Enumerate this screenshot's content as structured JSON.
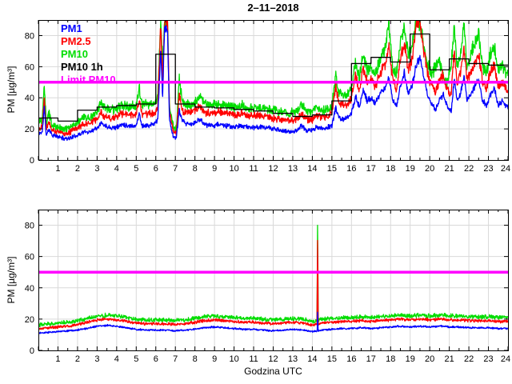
{
  "title": "2–11–2018",
  "xlabel": "Godzina UTC",
  "ylabel": "PM [µg/m³]",
  "legend": [
    {
      "label": "PM1",
      "color": "#0000ff"
    },
    {
      "label": "PM2.5",
      "color": "#ff0000"
    },
    {
      "label": "PM10",
      "color": "#00dd00"
    },
    {
      "label": "PM10 1h",
      "color": "#000000"
    },
    {
      "label": "Limit PM10",
      "color": "#ff00ff"
    }
  ],
  "axes": {
    "xlim": [
      0,
      24
    ],
    "ylim": [
      0,
      90
    ],
    "xticks": [
      1,
      2,
      3,
      4,
      5,
      6,
      7,
      8,
      9,
      10,
      11,
      12,
      13,
      14,
      15,
      16,
      17,
      18,
      19,
      20,
      21,
      22,
      23,
      24
    ],
    "yticks": [
      0,
      20,
      40,
      60,
      80
    ],
    "minor_x_step": 0.5,
    "grid": true,
    "grid_color": "#d9d9d9",
    "axis_color": "#000000"
  },
  "chart_data": [
    {
      "type": "line",
      "title": "2–11–2018",
      "ylabel": "PM [µg/m³]",
      "legend_position": "top-left-inside",
      "x_hours": [
        0,
        0.2,
        0.3,
        0.4,
        0.55,
        0.7,
        1,
        1.3,
        1.6,
        2,
        2.3,
        2.6,
        3,
        3.2,
        3.4,
        3.7,
        4,
        4.3,
        4.6,
        5,
        5.15,
        5.3,
        5.6,
        5.9,
        6.1,
        6.25,
        6.35,
        6.45,
        6.6,
        6.7,
        6.9,
        7.05,
        7.2,
        7.35,
        7.6,
        7.9,
        8.1,
        8.3,
        8.5,
        8.8,
        9.2,
        9.6,
        10,
        10.4,
        10.8,
        11.2,
        11.6,
        12,
        12.4,
        12.8,
        13.2,
        13.45,
        13.7,
        14,
        14.2,
        14.5,
        14.8,
        15,
        15.2,
        15.35,
        15.6,
        15.8,
        16,
        16.2,
        16.4,
        16.6,
        16.8,
        17,
        17.2,
        17.5,
        17.75,
        17.9,
        18.1,
        18.3,
        18.5,
        18.7,
        18.9,
        19.1,
        19.3,
        19.5,
        19.7,
        19.9,
        20.1,
        20.3,
        20.5,
        20.7,
        20.9,
        21.1,
        21.25,
        21.4,
        21.6,
        21.75,
        21.9,
        22.1,
        22.3,
        22.5,
        22.7,
        22.9,
        23.1,
        23.3,
        23.5,
        23.7,
        23.9,
        24
      ],
      "series": [
        {
          "name": "PM1",
          "color": "#0000ff",
          "noise": 1.4,
          "seed": 11,
          "values": [
            17,
            18,
            34,
            16,
            20,
            16,
            15,
            14,
            14,
            16,
            18,
            18,
            21,
            24,
            22,
            21,
            21,
            23,
            22,
            22,
            30,
            22,
            22,
            23,
            26,
            70,
            40,
            86,
            84,
            25,
            15,
            14,
            32,
            25,
            23,
            23,
            25,
            26,
            23,
            22,
            23,
            22,
            21,
            22,
            21,
            21,
            21,
            20,
            19,
            18,
            19,
            22,
            19,
            19,
            21,
            20,
            21,
            22,
            34,
            27,
            26,
            27,
            30,
            41,
            34,
            45,
            38,
            40,
            36,
            43,
            47,
            54,
            39,
            34,
            48,
            56,
            43,
            48,
            60,
            66,
            52,
            42,
            36,
            32,
            39,
            42,
            34,
            31,
            52,
            38,
            44,
            54,
            39,
            42,
            47,
            52,
            38,
            35,
            42,
            47,
            35,
            38,
            35,
            34
          ]
        },
        {
          "name": "PM2.5",
          "color": "#ff0000",
          "noise": 1.9,
          "seed": 22,
          "values": [
            20,
            22,
            42,
            20,
            25,
            19,
            18,
            17,
            18,
            21,
            23,
            23,
            27,
            30,
            28,
            27,
            28,
            30,
            29,
            29,
            39,
            29,
            30,
            30,
            34,
            86,
            50,
            88,
            88,
            30,
            18,
            17,
            43,
            32,
            30,
            31,
            33,
            35,
            31,
            30,
            31,
            30,
            29,
            30,
            28,
            29,
            28,
            27,
            26,
            25,
            26,
            30,
            26,
            26,
            29,
            27,
            28,
            30,
            47,
            37,
            35,
            36,
            40,
            54,
            45,
            59,
            50,
            52,
            47,
            57,
            62,
            74,
            52,
            46,
            65,
            76,
            58,
            64,
            86,
            88,
            70,
            55,
            48,
            44,
            52,
            55,
            45,
            42,
            70,
            50,
            58,
            72,
            52,
            56,
            62,
            68,
            50,
            46,
            56,
            62,
            47,
            50,
            46,
            44
          ]
        },
        {
          "name": "PM10",
          "color": "#00dd00",
          "noise": 2.2,
          "seed": 33,
          "values": [
            24,
            26,
            48,
            24,
            30,
            22,
            21,
            20,
            21,
            24,
            27,
            27,
            31,
            36,
            33,
            32,
            33,
            35,
            34,
            35,
            47,
            35,
            36,
            36,
            40,
            88,
            60,
            89,
            89,
            35,
            21,
            20,
            52,
            38,
            35,
            36,
            38,
            41,
            36,
            35,
            36,
            35,
            34,
            35,
            33,
            34,
            33,
            32,
            31,
            30,
            31,
            36,
            31,
            31,
            34,
            32,
            33,
            35,
            55,
            43,
            41,
            42,
            46,
            62,
            52,
            68,
            58,
            60,
            55,
            66,
            72,
            88,
            60,
            54,
            76,
            86,
            68,
            75,
            88,
            88,
            72,
            62,
            55,
            60,
            64,
            54,
            50,
            62,
            86,
            60,
            70,
            88,
            62,
            68,
            75,
            80,
            60,
            55,
            68,
            72,
            58,
            60,
            56,
            57
          ]
        }
      ],
      "hourly_series": {
        "name": "PM10 1h",
        "color": "#000000",
        "values": [
          27,
          25,
          32,
          34,
          35,
          36,
          68,
          36,
          34,
          33.5,
          32.5,
          31.5,
          30,
          28,
          29,
          38,
          62,
          66,
          63,
          81,
          58,
          65,
          62,
          61
        ]
      },
      "limit_line": {
        "name": "Limit PM10",
        "value": 50,
        "color": "#ff00ff"
      }
    },
    {
      "type": "line",
      "xlabel": "Godzina UTC",
      "ylabel": "PM [µg/m³]",
      "x_step": 0.5,
      "series": [
        {
          "name": "PM1",
          "color": "#0000ff",
          "noise": 0.6,
          "seed": 44,
          "values": [
            11,
            11.5,
            12,
            12.5,
            13,
            14,
            15.5,
            16,
            15.5,
            14.5,
            13.5,
            13,
            13,
            13,
            12.5,
            13,
            13.5,
            14.5,
            15,
            14.5,
            14,
            13.5,
            13.5,
            13,
            12.5,
            13,
            13.5,
            13,
            12,
            13,
            13.5,
            14,
            14,
            14.5,
            14,
            14.5,
            15,
            15.5,
            15,
            15.5,
            15,
            15.5,
            15,
            15,
            14.5,
            14.5,
            14.5,
            14,
            14
          ]
        },
        {
          "name": "PM2.5",
          "color": "#ff0000",
          "noise": 0.9,
          "seed": 55,
          "values": [
            14,
            14.5,
            15,
            15.5,
            16.5,
            18,
            19.5,
            20,
            19.5,
            18.5,
            17.5,
            17,
            17,
            17,
            16.5,
            17,
            18,
            19,
            19.5,
            19,
            18.5,
            18,
            18,
            17.5,
            17,
            17.5,
            18,
            17.5,
            16,
            17.5,
            18,
            18.5,
            18.5,
            19,
            18.5,
            19,
            19.5,
            20,
            19.5,
            20,
            19.5,
            20,
            19.5,
            19.5,
            19,
            19,
            19,
            18.5,
            18.5
          ]
        },
        {
          "name": "PM10",
          "color": "#00dd00",
          "noise": 1.2,
          "seed": 66,
          "values": [
            16.5,
            17,
            17.5,
            18,
            19,
            20.5,
            22,
            22.5,
            22,
            21,
            20,
            19.5,
            19.5,
            19.5,
            19,
            19.5,
            20.5,
            21.5,
            22,
            21.5,
            21,
            20.5,
            20.5,
            20,
            19.5,
            20,
            20.5,
            20,
            18.5,
            20,
            20.5,
            21,
            21,
            21.5,
            21,
            21.5,
            22,
            22.5,
            22,
            22.5,
            22,
            22.5,
            22,
            22,
            21.5,
            21.5,
            21.5,
            21,
            21
          ]
        }
      ],
      "spike": {
        "hour": 14.27,
        "width": 0.04,
        "peaks": {
          "PM1": 27,
          "PM2.5": 77,
          "PM10": 89
        }
      },
      "limit_line": {
        "name": "Limit PM10",
        "value": 50,
        "color": "#ff00ff"
      }
    }
  ]
}
